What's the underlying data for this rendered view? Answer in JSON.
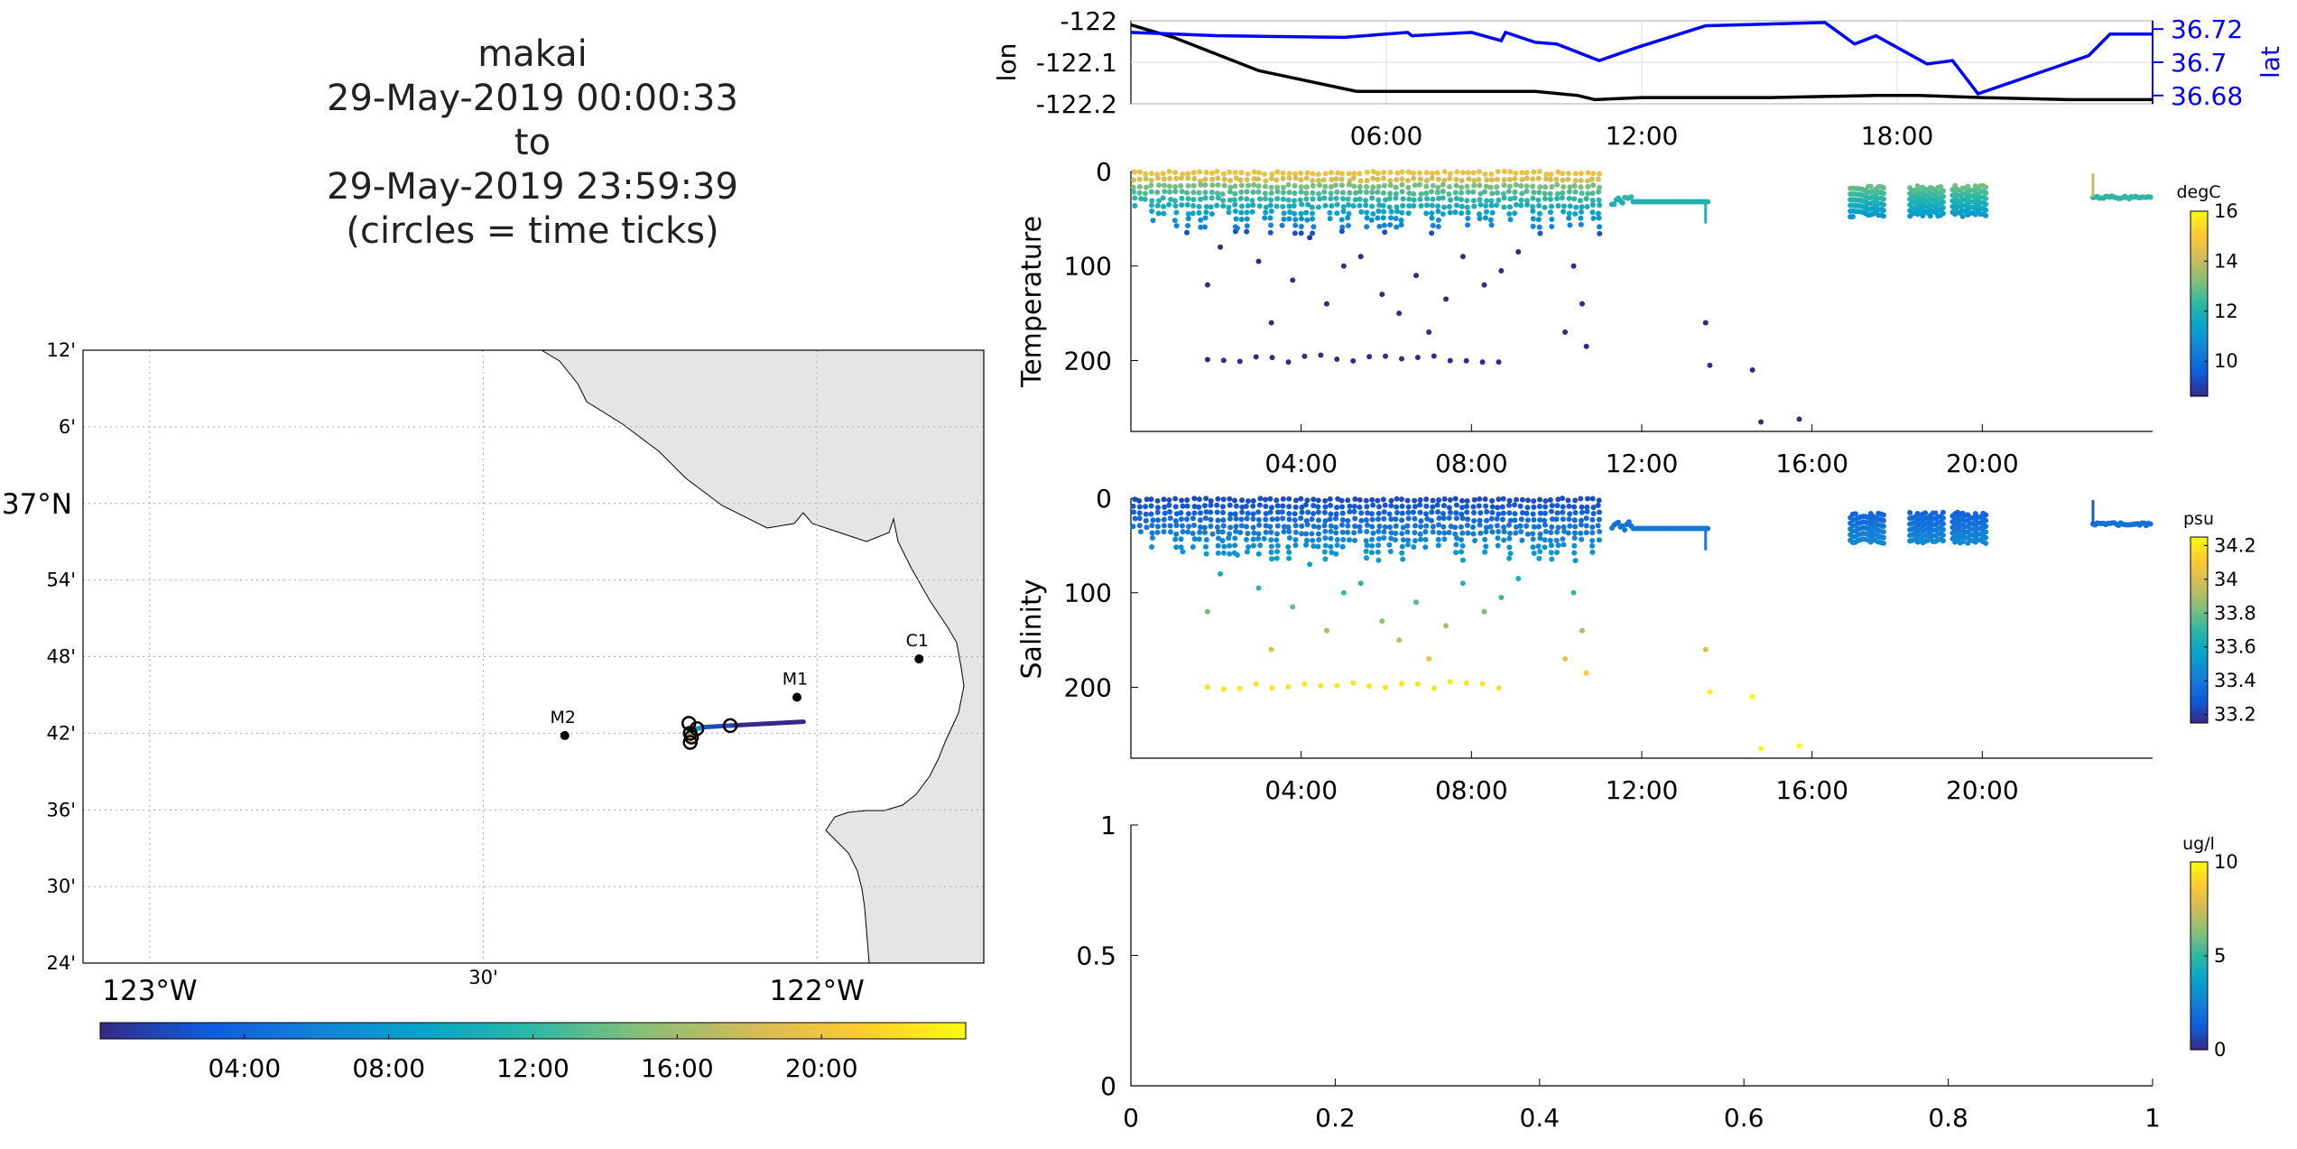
{
  "title": {
    "line1": "makai",
    "line2": "29-May-2019 00:00:33",
    "line3": "to",
    "line4": "29-May-2019 23:59:39",
    "line5": "(circles = time ticks)"
  },
  "colors": {
    "lon": "#000000",
    "lat": "#0000ff",
    "land": "#e5e5e5",
    "grid": "#aaaaaa",
    "parula": [
      "#352a87",
      "#0f5cdd",
      "#1481d6",
      "#06a4ca",
      "#2eb7a4",
      "#87bf77",
      "#d1bb59",
      "#fec832",
      "#f9fb0e"
    ]
  },
  "chart_data": [
    {
      "type": "map",
      "lon_ticks": [
        -123.0,
        -122.5,
        -122.0
      ],
      "lon_tick_labels": [
        "123°W",
        "30'",
        "122°W"
      ],
      "lat_ticks": [
        37.2,
        37.1,
        37.0,
        36.9,
        36.8,
        36.7,
        36.6,
        36.5,
        36.4
      ],
      "lat_tick_labels": [
        "12'",
        "6'",
        "37°N",
        "54'",
        "48'",
        "42'",
        "36'",
        "30'",
        "24'"
      ],
      "xlim": [
        -123.1,
        -121.75
      ],
      "ylim": [
        36.4,
        37.2
      ],
      "stations": [
        {
          "name": "M2",
          "lon": -122.378,
          "lat": 36.697
        },
        {
          "name": "M1",
          "lon": -122.03,
          "lat": 36.747
        },
        {
          "name": "C1",
          "lon": -121.847,
          "lat": 36.797
        }
      ],
      "track": [
        {
          "hour": 0,
          "lon": -122.02,
          "lat": 36.715
        },
        {
          "hour": 2,
          "lon": -122.13,
          "lat": 36.71
        },
        {
          "hour": 4,
          "lon": -122.17,
          "lat": 36.708
        },
        {
          "hour": 6,
          "lon": -122.175,
          "lat": 36.707
        },
        {
          "hour": 8,
          "lon": -122.18,
          "lat": 36.706
        },
        {
          "hour": 10,
          "lon": -122.182,
          "lat": 36.706
        },
        {
          "hour": 11,
          "lon": -122.19,
          "lat": 36.704
        },
        {
          "hour": 14,
          "lon": -122.19,
          "lat": 36.7
        },
        {
          "hour": 16,
          "lon": -122.193,
          "lat": 36.694
        },
        {
          "hour": 18,
          "lon": -122.187,
          "lat": 36.698
        },
        {
          "hour": 20,
          "lon": -122.19,
          "lat": 36.688
        },
        {
          "hour": 22,
          "lon": -122.192,
          "lat": 36.692
        },
        {
          "hour": 24,
          "lon": -122.19,
          "lat": 36.695
        }
      ],
      "time_tick_circles": [
        {
          "lon": -122.13,
          "lat": 36.71
        },
        {
          "lon": -122.18,
          "lat": 36.706
        },
        {
          "lon": -122.19,
          "lat": 36.7
        },
        {
          "lon": -122.188,
          "lat": 36.695
        },
        {
          "lon": -122.192,
          "lat": 36.713
        },
        {
          "lon": -122.19,
          "lat": 36.688
        }
      ],
      "colorbar": {
        "hours": [
          0,
          24
        ],
        "tick_labels": [
          "04:00",
          "08:00",
          "12:00",
          "16:00",
          "20:00"
        ],
        "tick_hours": [
          4,
          8,
          12,
          16,
          20
        ]
      }
    },
    {
      "type": "line",
      "name": "lon-lat",
      "ylabel": "lon",
      "ylabel_right": "lat",
      "xlim_hours": [
        0,
        24
      ],
      "x_tick_labels": [
        "06:00",
        "12:00",
        "18:00"
      ],
      "x_tick_hours": [
        6,
        12,
        18
      ],
      "y_left": [
        -122.2,
        -122.0
      ],
      "y_left_ticks": [
        -122,
        -122.1,
        -122.2
      ],
      "y_left_tick_labels": [
        "-122",
        "-122.1",
        "-122.2"
      ],
      "y_right": [
        36.675,
        36.725
      ],
      "y_right_ticks": [
        36.72,
        36.7,
        36.68
      ],
      "y_right_tick_labels": [
        "36.72",
        "36.7",
        "36.68"
      ],
      "series": [
        {
          "axis": "left",
          "x": [
            0,
            1,
            3,
            5.3,
            6.5,
            8,
            9.5,
            10.5,
            10.9,
            12,
            15,
            17.5,
            18.5,
            20,
            22,
            24
          ],
          "y": [
            -122.01,
            -122.04,
            -122.12,
            -122.17,
            -122.17,
            -122.17,
            -122.17,
            -122.18,
            -122.19,
            -122.185,
            -122.185,
            -122.18,
            -122.18,
            -122.185,
            -122.19,
            -122.19
          ]
        },
        {
          "axis": "right",
          "x": [
            0,
            2,
            5,
            6.5,
            6.6,
            8,
            8.7,
            8.8,
            9.5,
            10,
            11,
            11.9,
            13.5,
            16.3,
            17,
            17.5,
            18.7,
            19.3,
            19.9,
            22.5,
            23,
            24
          ],
          "y": [
            36.718,
            36.716,
            36.715,
            36.718,
            36.716,
            36.718,
            36.713,
            36.718,
            36.712,
            36.711,
            36.701,
            36.709,
            36.722,
            36.724,
            36.711,
            36.716,
            36.699,
            36.701,
            36.681,
            36.704,
            36.717,
            36.717
          ]
        }
      ]
    },
    {
      "type": "scatter",
      "name": "temperature",
      "ylabel": "Temperature",
      "units": "degC",
      "xlim_hours": [
        0,
        24
      ],
      "x_tick_labels": [
        "04:00",
        "08:00",
        "12:00",
        "16:00",
        "20:00"
      ],
      "x_tick_hours": [
        4,
        8,
        12,
        16,
        20
      ],
      "ylim": [
        0,
        275
      ],
      "y_ticks": [
        0,
        100,
        200
      ],
      "y_tick_labels": [
        "0",
        "100",
        "200"
      ],
      "clim": [
        8.6,
        16
      ],
      "colorbar_ticks": [
        10,
        12,
        14,
        16
      ],
      "colorbar_tick_labels": [
        "10",
        "12",
        "14",
        "16"
      ]
    },
    {
      "type": "scatter",
      "name": "salinity",
      "ylabel": "Salinity",
      "units": "psu",
      "xlim_hours": [
        0,
        24
      ],
      "x_tick_labels": [
        "04:00",
        "08:00",
        "12:00",
        "16:00",
        "20:00"
      ],
      "x_tick_hours": [
        4,
        8,
        12,
        16,
        20
      ],
      "ylim": [
        0,
        275
      ],
      "y_ticks": [
        0,
        100,
        200
      ],
      "y_tick_labels": [
        "0",
        "100",
        "200"
      ],
      "clim": [
        33.15,
        34.25
      ],
      "colorbar_ticks": [
        33.2,
        33.4,
        33.6,
        33.8,
        34,
        34.2
      ],
      "colorbar_tick_labels": [
        "33.2",
        "33.4",
        "33.6",
        "33.8",
        "34",
        "34.2"
      ]
    },
    {
      "type": "scatter",
      "name": "chlorophyll",
      "units": "ug/l",
      "xlim": [
        0,
        1
      ],
      "x_ticks": [
        0,
        0.2,
        0.4,
        0.6,
        0.8,
        1
      ],
      "x_tick_labels": [
        "0",
        "0.2",
        "0.4",
        "0.6",
        "0.8",
        "1"
      ],
      "ylim": [
        0,
        1
      ],
      "y_ticks": [
        0,
        0.5,
        1
      ],
      "y_tick_labels": [
        "0",
        "0.5",
        "1"
      ],
      "colorbar_ticks": [
        0,
        5,
        10
      ],
      "colorbar_tick_labels": [
        "0",
        "5",
        "10"
      ],
      "clim": [
        0,
        10
      ]
    }
  ]
}
